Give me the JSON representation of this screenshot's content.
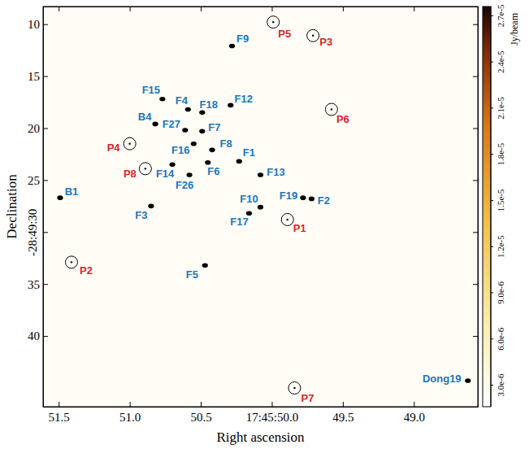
{
  "chart_data": {
    "type": "scatter",
    "x_label": "Right ascension",
    "y_label": "Declination",
    "xlim": [
      51.61,
      48.55
    ],
    "ylim": [
      8.3,
      46.8
    ],
    "xticks": [
      51.5,
      {
        "value": 51.0,
        "label": "51.0"
      },
      50.5,
      {
        "value": 50.0,
        "label": "17:45:50.0"
      },
      49.5,
      {
        "value": 49.0,
        "label": "49.0"
      }
    ],
    "yticks": [
      10,
      15,
      20,
      25,
      {
        "value": 30,
        "label": "-28:49:30"
      },
      35,
      40
    ],
    "grid": false,
    "series": [
      {
        "color": "#1b76bd",
        "marker": "dot",
        "labels": [
          "F9",
          "F15",
          "F4",
          "F18",
          "F12",
          "B4",
          "F27",
          "F7",
          "F8",
          "F16",
          "F1",
          "F14",
          "F6",
          "F26",
          "F13",
          "B1",
          "F19",
          "F2",
          "F3",
          "F10",
          "F17",
          "F5",
          "Dong19"
        ],
        "x": [
          50.28,
          50.77,
          50.59,
          50.49,
          50.29,
          50.82,
          50.61,
          50.49,
          50.42,
          50.55,
          50.23,
          50.7,
          50.45,
          50.58,
          50.08,
          51.49,
          49.78,
          49.72,
          50.85,
          50.08,
          50.16,
          50.47,
          48.62
        ],
        "values": [
          12.1,
          17.2,
          18.2,
          18.5,
          17.8,
          19.6,
          20.2,
          20.3,
          22.1,
          21.5,
          23.2,
          23.5,
          23.3,
          24.5,
          24.5,
          26.7,
          26.7,
          26.8,
          27.5,
          27.6,
          28.2,
          33.2,
          44.3
        ]
      },
      {
        "color": "#d7262b",
        "marker": "circle",
        "labels": [
          "P5",
          "P3",
          "P6",
          "P4",
          "P8",
          "P1",
          "P2",
          "P7"
        ],
        "x": [
          49.99,
          49.71,
          49.58,
          51.0,
          50.89,
          49.89,
          51.41,
          49.84
        ],
        "values": [
          9.8,
          11.1,
          18.2,
          21.5,
          23.9,
          28.8,
          32.9,
          45.0
        ]
      }
    ],
    "colorbar": {
      "label": "Jy/beam",
      "range": [
        1.6e-06,
        2.76e-05
      ],
      "ticks": [
        {
          "value": 3e-06,
          "label": "3.0e-6"
        },
        {
          "value": 6e-06,
          "label": "6.0e-6"
        },
        {
          "value": 9e-06,
          "label": "9.0e-6"
        },
        {
          "value": 1.2e-05,
          "label": "1.2e-5"
        },
        {
          "value": 1.5e-05,
          "label": "1.5e-5"
        },
        {
          "value": 1.8e-05,
          "label": "1.8e-5"
        },
        {
          "value": 2.1e-05,
          "label": "2.1e-5"
        },
        {
          "value": 2.4e-05,
          "label": "2.4e-5"
        },
        {
          "value": 2.7e-05,
          "label": "2.7e-5"
        }
      ]
    }
  }
}
